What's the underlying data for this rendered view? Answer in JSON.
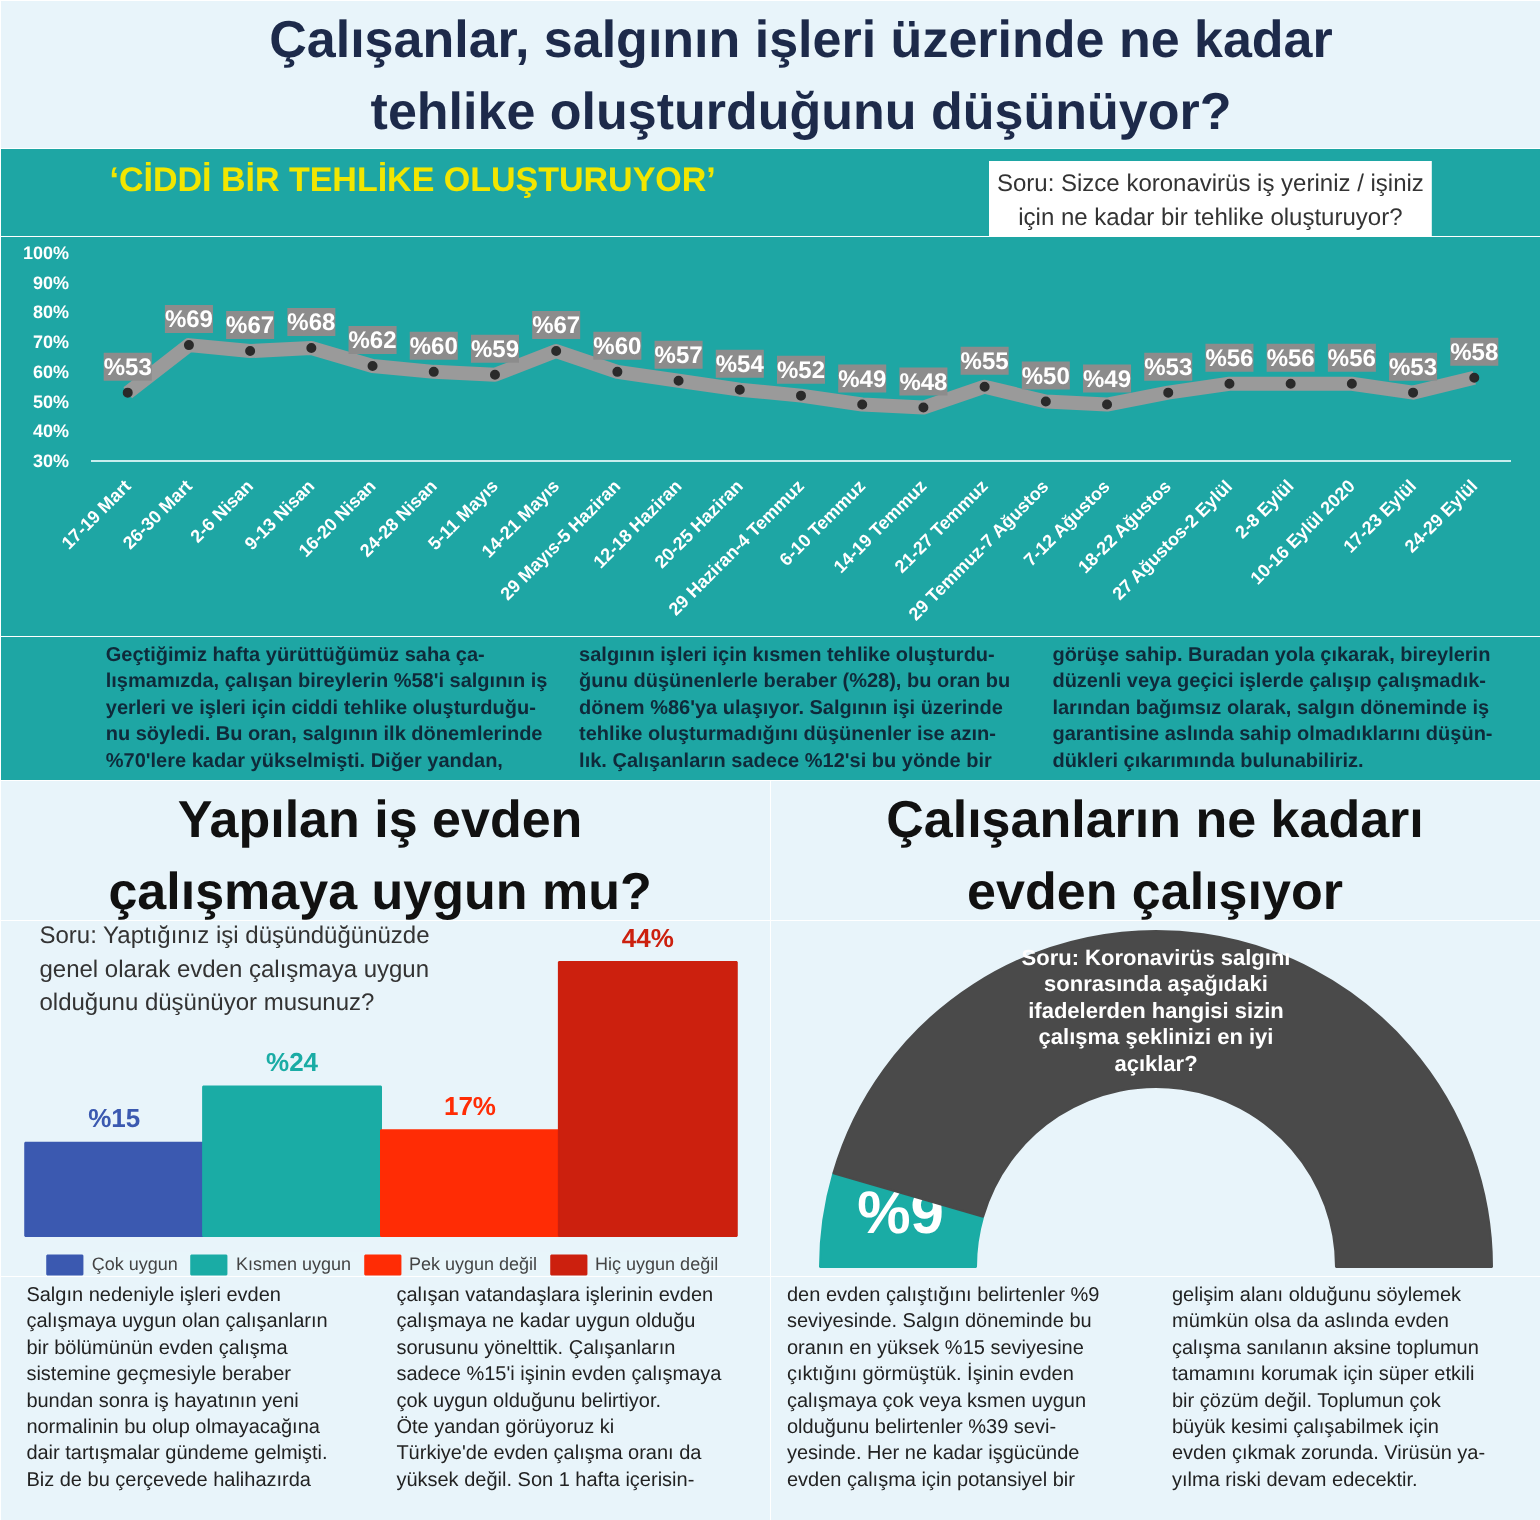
{
  "chart_data": [
    {
      "type": "line",
      "title": "Çalışanlar, salgının işleri üzerinde ne kadar tehlike oluşturduğunu düşünüyor?",
      "subtitle": "‘CİDDİ BİR TEHLİKE OLUŞTURUYOR’",
      "annotations": [
        "Soru: Sizce koronavirüs iş yeriniz / işiniz için ne kadar bir tehlike oluşturuyor?",
        "Geçtiğimiz hafta yürüttüğümüz saha ça-\nlışmamızda, çalışan bireylerin %58'i salgının iş\nyerleri ve işleri için ciddi tehlike oluşturduğu-\nnu söyledi. Bu oran, salgının ilk dönemlerinde\n%70'lere kadar yükselmişti. Diğer yandan,",
        "salgının işleri için kısmen tehlike oluşturdu-\nğunu düşünenlerle beraber (%28), bu oran bu\ndönem %86'ya ulaşıyor. Salgının işi üzerinde\ntehlike oluşturmadığını düşünenler ise azın-\nlık. Çalışanların sadece %12'si bu yönde bir",
        "görüşe sahip. Buradan yola çıkarak, bireylerin\ndüzenli veya geçici işlerde çalışıp çalışmadık-\nlarından bağımsız olarak, salgın döneminde iş\ngarantisine aslında sahip olmadıklarını düşün-\ndükleri çıkarımında bulunabiliriz."
      ],
      "categories": [
        "17-19 Mart",
        "26-30 Mart",
        "2-6 Nisan",
        "9-13 Nisan",
        "16-20 Nisan",
        "24-28 Nisan",
        "5-11 Mayıs",
        "14-21 Mayıs",
        "29 Mayıs-5 Haziran",
        "12-18 Haziran",
        "20-25 Haziran",
        "29 Haziran-4 Temmuz",
        "6-10 Temmuz",
        "14-19 Temmuz",
        "21-27 Temmuz",
        "29 Temmuz-7 Ağustos",
        "7-12 Ağustos",
        "18-22 Ağustos",
        "27 Ağustos-2 Eylül",
        "2-8 Eylül",
        "10-16 Eylül 2020",
        "17-23 Eylül",
        "24-29 Eylül"
      ],
      "values": [
        53,
        69,
        67,
        68,
        62,
        60,
        59,
        67,
        60,
        57,
        54,
        52,
        49,
        48,
        55,
        50,
        49,
        53,
        56,
        56,
        56,
        53,
        58
      ],
      "value_labels": [
        "%53",
        "%69",
        "%67",
        "%68",
        "%62",
        "%60",
        "%59",
        "%67",
        "%60",
        "%57",
        "%54",
        "%52",
        "%49",
        "%48",
        "%55",
        "%50",
        "%49",
        "%53",
        "%56",
        "%56",
        "%56",
        "%53",
        "%58"
      ],
      "color": "#9a9a9a",
      "marker": "circle",
      "ylim": [
        30,
        100
      ],
      "yticks": [
        {
          "value": 30,
          "label": "30%"
        },
        {
          "value": 40,
          "label": "40%"
        },
        {
          "value": 50,
          "label": "50%"
        },
        {
          "value": 60,
          "label": "60%"
        },
        {
          "value": 70,
          "label": "70%"
        },
        {
          "value": 80,
          "label": "80%"
        },
        {
          "value": 90,
          "label": "90%"
        },
        {
          "value": 100,
          "label": "100%"
        }
      ]
    },
    {
      "type": "bar",
      "title": "Yapılan iş evden çalışmaya uygun mu?",
      "annotations": [
        "Soru: Yaptığınız işi düşündüğünüzde genel olarak evden çalışmaya uygun olduğunu düşünüyor musunuz?",
        "Salgın nedeniyle işleri evden\nçalışmaya uygun olan çalışanların\nbir bölümünün evden çalışma\nsistemine geçmesiyle beraber\nbundan sonra iş hayatının yeni\nnormalinin bu olup olmayacağına\ndair tartışmalar gündeme gelmişti.\nBiz de bu çerçevede halihazırda",
        "çalışan vatandaşlara işlerinin evden\nçalışmaya ne kadar uygun olduğu\nsorusunu yönelttik. Çalışanların\nsadece %15'i işinin evden çalışmaya\nçok uygun olduğunu belirtiyor.\nÖte yandan görüyoruz ki\nTürkiye'de evden çalışma oranı da\nyüksek değil. Son 1 hafta içerisin-"
      ],
      "categories": [
        null
      ],
      "series": [
        {
          "name": "Çok uygun",
          "color": "#3b59b0",
          "values": [
            15
          ],
          "value_labels": [
            "%15"
          ]
        },
        {
          "name": "Kısmen uygun",
          "color": "#1aaca5",
          "values": [
            24
          ],
          "value_labels": [
            "%24"
          ]
        },
        {
          "name": "Pek uygun değil",
          "color": "#ff2c05",
          "values": [
            17
          ],
          "value_labels": [
            "17%"
          ]
        },
        {
          "name": "Hiç uygun değil",
          "color": "#cc200e",
          "values": [
            44
          ],
          "value_labels": [
            "44%"
          ]
        }
      ],
      "legend": "bottom"
    },
    {
      "type": "donut",
      "title": "Çalışanların ne kadarı evden çalışıyor",
      "annotations": [
        "Soru: Koronavirüs salgını sonrasında aşağıdaki ifadelerden hangisi sizin çalışma şeklinizi en iyi açıklar?",
        "den evden çalıştığını belirtenler %9\nseviyesinde. Salgın döneminde bu\noranın en yüksek %15 seviyesine\nçıktığını görmüştük. İşinin evden\nçalışmaya çok veya ksmen uygun\nolduğunu belirtenler %39 sevi-\nyesinde. Her ne kadar işgücünde\nevden çalışma için potansiyel bir",
        "gelişim alanı olduğunu söylemek\nmümkün olsa da aslında evden\nçalışma sanılanın aksine toplumun\ntamamını korumak için süper etkili\nbir çözüm değil. Toplumun çok\nbüyük kesimi çalışabilmek için\nevden çıkmak zorunda. Virüsün ya-\nyılma riski devam edecektir."
      ],
      "categories": [
        null,
        null
      ],
      "values": [
        9,
        91
      ],
      "value_labels": [
        "%9",
        null
      ],
      "colors": [
        "#1aaca5",
        "#4a4a4a"
      ]
    }
  ]
}
